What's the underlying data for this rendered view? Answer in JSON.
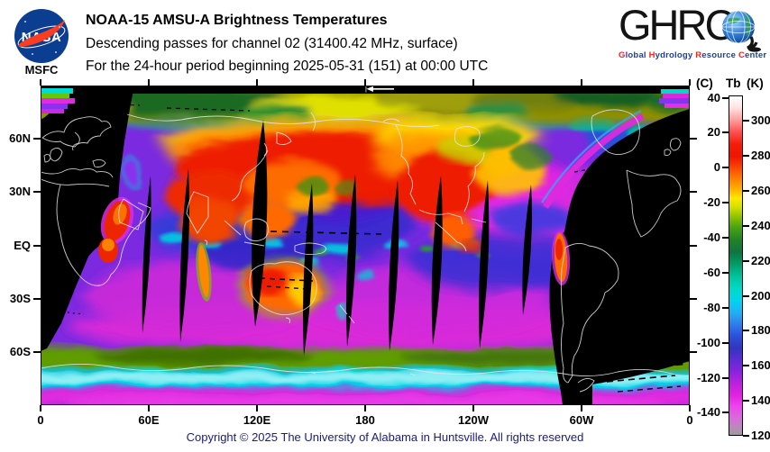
{
  "header": {
    "nasa": {
      "logo_text": "NASA",
      "sub_label": "MSFC"
    },
    "title_line1": "NOAA-15 AMSU-A Brightness Temperatures",
    "title_line2": "Descending passes for channel 02 (31400.42 MHz, surface)",
    "title_line3": "For the 24-hour period beginning 2025-05-31 (151) at 00:00 UTC",
    "ghrc": {
      "acronym": "GHRC",
      "tagline": [
        {
          "initial": "G",
          "rest": "lobal"
        },
        {
          "initial": "H",
          "rest": "ydrology"
        },
        {
          "initial": "R",
          "rest": "esource"
        },
        {
          "initial": "C",
          "rest": "enter"
        }
      ],
      "initial_color": "#e8262d",
      "rest_color": "#1f3f9e"
    }
  },
  "chart_data": {
    "type": "heatmap",
    "title": "NOAA-15 AMSU-A Brightness Temperatures",
    "subtitle": "Descending passes for channel 02 (31400.42 MHz, surface)",
    "period": "24-hour period beginning 2025-05-31 (151) at 00:00 UTC",
    "grid": false,
    "legend_position": "right",
    "x_axis": {
      "range_lon_deg": [
        0,
        360
      ],
      "ticks": [
        {
          "label": "0",
          "lon": 0
        },
        {
          "label": "60E",
          "lon": 60
        },
        {
          "label": "120E",
          "lon": 120
        },
        {
          "label": "180",
          "lon": 180
        },
        {
          "label": "120W",
          "lon": 240
        },
        {
          "label": "60W",
          "lon": 300
        },
        {
          "label": "0",
          "lon": 360
        }
      ]
    },
    "y_axis": {
      "range_lat_deg": [
        90,
        -90
      ],
      "ticks": [
        {
          "label": "60N",
          "lat": 60
        },
        {
          "label": "30N",
          "lat": 30
        },
        {
          "label": "EQ",
          "lat": 0
        },
        {
          "label": "30S",
          "lat": -30
        },
        {
          "label": "60S",
          "lat": -60
        }
      ]
    },
    "colorbar": {
      "unit_left": "(C)",
      "quantity": "Tb",
      "unit_right": "(K)",
      "celsius_ticks": [
        40,
        20,
        0,
        -20,
        -40,
        -60,
        -80,
        -100,
        -120,
        -140
      ],
      "kelvin_ticks": [
        300,
        280,
        260,
        240,
        220,
        200,
        180,
        160,
        140,
        120
      ],
      "top_k": 314.5,
      "bottom_k": 120,
      "gradient_stops": [
        [
          314.5,
          "#ffffff"
        ],
        [
          308,
          "#ffe2e2"
        ],
        [
          301,
          "#ff9e9e"
        ],
        [
          294,
          "#ff5050"
        ],
        [
          287,
          "#f51c08"
        ],
        [
          280,
          "#ee1500"
        ],
        [
          274,
          "#fa4200"
        ],
        [
          267,
          "#ff8000"
        ],
        [
          261,
          "#ffb200"
        ],
        [
          256,
          "#ffe800"
        ],
        [
          251,
          "#d6e000"
        ],
        [
          245,
          "#8cc000"
        ],
        [
          239,
          "#46a210"
        ],
        [
          232,
          "#218226"
        ],
        [
          225,
          "#0f7342"
        ],
        [
          218,
          "#029c68"
        ],
        [
          211,
          "#00c49c"
        ],
        [
          204,
          "#00d9c6"
        ],
        [
          197,
          "#00d4f0"
        ],
        [
          190,
          "#22aef5"
        ],
        [
          184,
          "#2f80ea"
        ],
        [
          177,
          "#2b52dd"
        ],
        [
          170,
          "#3136bd"
        ],
        [
          164,
          "#5a2bd2"
        ],
        [
          157,
          "#8424dc"
        ],
        [
          150,
          "#b822dd"
        ],
        [
          143,
          "#e022e2"
        ],
        [
          136,
          "#ee46ee"
        ],
        [
          129,
          "#d76ed7"
        ],
        [
          124,
          "#b88ab8"
        ],
        [
          120,
          "#9c9c9c"
        ]
      ]
    },
    "map_notes": {
      "no_data_color": "#000000",
      "coastline_color": "#e6e6e6"
    }
  },
  "footer": {
    "copyright": "Copyright © 2025 The University of Alabama in Huntsville.  All rights reserved"
  }
}
